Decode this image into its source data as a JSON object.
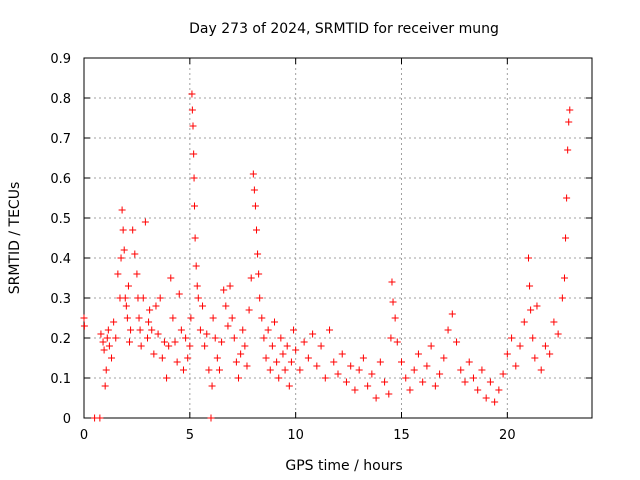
{
  "chart_data": {
    "type": "scatter",
    "title": "Day 273 of 2024, SRMTID for receiver mung",
    "xlabel": "GPS time / hours",
    "ylabel": "SRMTID / TECUs",
    "xlim": [
      0,
      24
    ],
    "ylim": [
      0,
      0.9
    ],
    "xticks": [
      0,
      5,
      10,
      15,
      20
    ],
    "xtick_labels": [
      "0",
      "5",
      "10",
      "15",
      "20"
    ],
    "yticks": [
      0,
      0.1,
      0.2,
      0.3,
      0.4,
      0.5,
      0.6,
      0.7,
      0.8,
      0.9
    ],
    "ytick_labels": [
      "0",
      "0.1",
      "0.2",
      "0.3",
      "0.4",
      "0.5",
      "0.6",
      "0.7",
      "0.8",
      "0.9"
    ],
    "grid": true,
    "marker": "plus",
    "series_color": "#ff0000",
    "series": [
      {
        "name": "SRMTID",
        "x": [
          0.0,
          0.02,
          0.5,
          0.75,
          0.8,
          0.9,
          0.95,
          1.0,
          1.05,
          1.1,
          1.15,
          1.2,
          1.3,
          1.4,
          1.5,
          1.6,
          1.7,
          1.75,
          1.8,
          1.85,
          1.9,
          1.95,
          2.0,
          2.05,
          2.1,
          2.15,
          2.2,
          2.3,
          2.4,
          2.5,
          2.55,
          2.6,
          2.65,
          2.7,
          2.8,
          2.9,
          3.0,
          3.05,
          3.1,
          3.2,
          3.3,
          3.4,
          3.5,
          3.6,
          3.7,
          3.8,
          3.9,
          4.0,
          4.1,
          4.2,
          4.3,
          4.4,
          4.5,
          4.6,
          4.7,
          4.8,
          4.9,
          5.0,
          5.05,
          5.1,
          5.12,
          5.15,
          5.18,
          5.2,
          5.22,
          5.25,
          5.3,
          5.35,
          5.4,
          5.5,
          5.6,
          5.7,
          5.8,
          5.9,
          6.0,
          6.05,
          6.1,
          6.2,
          6.3,
          6.4,
          6.5,
          6.6,
          6.7,
          6.8,
          6.9,
          7.0,
          7.1,
          7.2,
          7.3,
          7.4,
          7.5,
          7.6,
          7.7,
          7.8,
          7.9,
          8.0,
          8.05,
          8.1,
          8.15,
          8.2,
          8.25,
          8.3,
          8.4,
          8.5,
          8.6,
          8.7,
          8.8,
          8.9,
          9.0,
          9.1,
          9.2,
          9.3,
          9.4,
          9.5,
          9.6,
          9.7,
          9.8,
          9.9,
          10.0,
          10.2,
          10.4,
          10.6,
          10.8,
          11.0,
          11.2,
          11.4,
          11.6,
          11.8,
          12.0,
          12.2,
          12.4,
          12.6,
          12.8,
          13.0,
          13.2,
          13.4,
          13.6,
          13.8,
          14.0,
          14.2,
          14.4,
          14.5,
          14.55,
          14.6,
          14.7,
          14.8,
          15.0,
          15.2,
          15.4,
          15.6,
          15.8,
          16.0,
          16.2,
          16.4,
          16.6,
          16.8,
          17.0,
          17.2,
          17.4,
          17.6,
          17.8,
          18.0,
          18.2,
          18.4,
          18.6,
          18.8,
          19.0,
          19.2,
          19.4,
          19.6,
          19.8,
          20.0,
          20.2,
          20.4,
          20.6,
          20.8,
          21.0,
          21.05,
          21.1,
          21.2,
          21.3,
          21.4,
          21.6,
          21.8,
          22.0,
          22.2,
          22.4,
          22.6,
          22.7,
          22.75,
          22.8,
          22.85,
          22.9,
          22.95
        ],
        "y": [
          0.25,
          0.23,
          0.0,
          0.0,
          0.21,
          0.19,
          0.17,
          0.08,
          0.12,
          0.2,
          0.22,
          0.18,
          0.15,
          0.24,
          0.2,
          0.36,
          0.3,
          0.4,
          0.52,
          0.47,
          0.42,
          0.3,
          0.28,
          0.25,
          0.33,
          0.19,
          0.22,
          0.47,
          0.41,
          0.36,
          0.3,
          0.25,
          0.22,
          0.18,
          0.3,
          0.49,
          0.2,
          0.24,
          0.27,
          0.22,
          0.16,
          0.28,
          0.21,
          0.3,
          0.15,
          0.19,
          0.1,
          0.18,
          0.35,
          0.25,
          0.19,
          0.14,
          0.31,
          0.22,
          0.12,
          0.2,
          0.15,
          0.18,
          0.25,
          0.81,
          0.77,
          0.73,
          0.66,
          0.6,
          0.53,
          0.45,
          0.38,
          0.33,
          0.3,
          0.22,
          0.28,
          0.18,
          0.21,
          0.12,
          0.0,
          0.08,
          0.25,
          0.2,
          0.15,
          0.12,
          0.19,
          0.32,
          0.28,
          0.23,
          0.33,
          0.25,
          0.2,
          0.14,
          0.1,
          0.16,
          0.22,
          0.18,
          0.13,
          0.27,
          0.35,
          0.61,
          0.57,
          0.53,
          0.47,
          0.41,
          0.36,
          0.3,
          0.25,
          0.2,
          0.15,
          0.22,
          0.12,
          0.18,
          0.24,
          0.14,
          0.1,
          0.2,
          0.16,
          0.12,
          0.18,
          0.08,
          0.14,
          0.22,
          0.17,
          0.12,
          0.19,
          0.15,
          0.21,
          0.13,
          0.18,
          0.1,
          0.22,
          0.14,
          0.11,
          0.16,
          0.09,
          0.13,
          0.07,
          0.12,
          0.15,
          0.08,
          0.11,
          0.05,
          0.14,
          0.09,
          0.06,
          0.2,
          0.34,
          0.29,
          0.25,
          0.19,
          0.14,
          0.1,
          0.07,
          0.12,
          0.16,
          0.09,
          0.13,
          0.18,
          0.08,
          0.11,
          0.15,
          0.22,
          0.26,
          0.19,
          0.12,
          0.09,
          0.14,
          0.1,
          0.07,
          0.12,
          0.05,
          0.09,
          0.04,
          0.07,
          0.11,
          0.16,
          0.2,
          0.13,
          0.18,
          0.24,
          0.4,
          0.33,
          0.27,
          0.2,
          0.15,
          0.28,
          0.12,
          0.18,
          0.16,
          0.24,
          0.21,
          0.3,
          0.35,
          0.45,
          0.55,
          0.67,
          0.74,
          0.77
        ]
      }
    ]
  }
}
